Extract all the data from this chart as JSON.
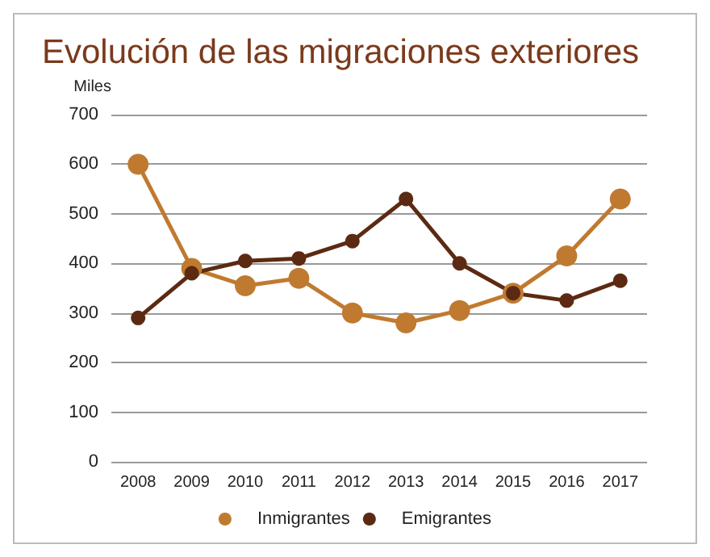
{
  "chart_data": {
    "type": "line",
    "title": "Evolución de las migraciones exteriores",
    "ylabel": "Miles",
    "categories": [
      "2008",
      "2009",
      "2010",
      "2011",
      "2012",
      "2013",
      "2014",
      "2015",
      "2016",
      "2017"
    ],
    "series": [
      {
        "name": "Inmigrantes",
        "color": "#c07a30",
        "values": [
          600,
          390,
          355,
          370,
          300,
          280,
          305,
          340,
          415,
          530
        ]
      },
      {
        "name": "Emigrantes",
        "color": "#5c2a12",
        "values": [
          290,
          380,
          405,
          410,
          445,
          530,
          400,
          340,
          325,
          365
        ]
      }
    ],
    "ylim": [
      0,
      700
    ],
    "yticks": [
      0,
      100,
      200,
      300,
      400,
      500,
      600,
      700
    ],
    "grid": "y",
    "legend": "bottom",
    "marker": "circle",
    "line_style": "solid"
  }
}
